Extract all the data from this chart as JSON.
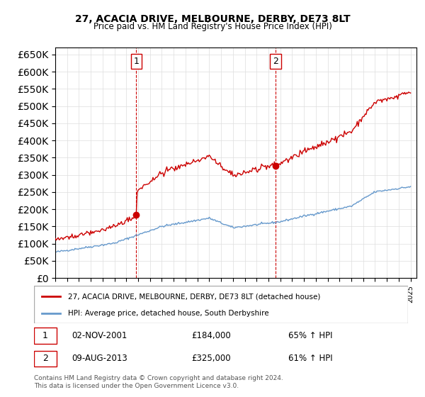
{
  "title": "27, ACACIA DRIVE, MELBOURNE, DERBY, DE73 8LT",
  "subtitle": "Price paid vs. HM Land Registry's House Price Index (HPI)",
  "legend_line1": "27, ACACIA DRIVE, MELBOURNE, DERBY, DE73 8LT (detached house)",
  "legend_line2": "HPI: Average price, detached house, South Derbyshire",
  "sale1_label": "1",
  "sale1_date": "02-NOV-2001",
  "sale1_price": "£184,000",
  "sale1_hpi": "65% ↑ HPI",
  "sale2_label": "2",
  "sale2_date": "09-AUG-2013",
  "sale2_price": "£325,000",
  "sale2_hpi": "61% ↑ HPI",
  "footer": "Contains HM Land Registry data © Crown copyright and database right 2024.\nThis data is licensed under the Open Government Licence v3.0.",
  "hpi_color": "#6699cc",
  "price_color": "#cc0000",
  "vline_color": "#cc0000",
  "marker_color": "#cc0000",
  "ylim_min": 0,
  "ylim_max": 670000,
  "yticks": [
    0,
    50000,
    100000,
    150000,
    200000,
    250000,
    300000,
    350000,
    400000,
    450000,
    500000,
    550000,
    600000,
    650000
  ],
  "sale1_year": 2001.84,
  "sale1_value": 184000,
  "sale2_year": 2013.6,
  "sale2_value": 325000
}
